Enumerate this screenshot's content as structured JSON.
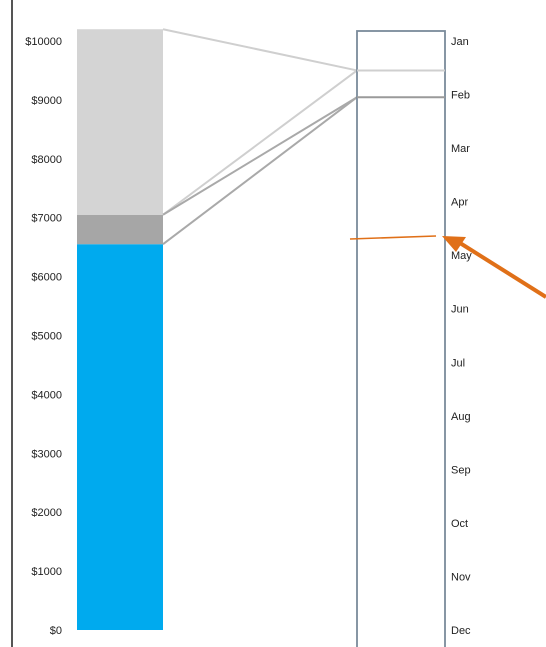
{
  "chart_data": {
    "type": "bar",
    "title": "",
    "xlabel": "",
    "ylabel": "",
    "ylim": [
      0,
      10500
    ],
    "y_ticks": [
      "$0",
      "$1000",
      "$2000",
      "$3000",
      "$4000",
      "$5000",
      "$6000",
      "$7000",
      "$8000",
      "$9000",
      "$10000"
    ],
    "y_tick_values": [
      0,
      1000,
      2000,
      3000,
      4000,
      5000,
      6000,
      7000,
      8000,
      9000,
      10000
    ],
    "stacked_bar": {
      "segments": [
        {
          "from": 0,
          "to": 6550,
          "color": "#00aaee"
        },
        {
          "from": 6550,
          "to": 7050,
          "color": "#a6a6a6"
        },
        {
          "from": 7050,
          "to": 10200,
          "color": "#d4d4d4"
        }
      ]
    },
    "months": [
      "Jan",
      "Feb",
      "Mar",
      "Apr",
      "May",
      "Jun",
      "Jul",
      "Aug",
      "Sep",
      "Oct",
      "Nov",
      "Dec"
    ],
    "zoom_lines": [
      {
        "month_pos": 0.55,
        "color": "#cfcfcf"
      },
      {
        "month_pos": 1.05,
        "color": "#9a9a9a"
      }
    ],
    "annotation_arrow": {
      "color": "#e07018"
    },
    "colors": {
      "axis": "#555555",
      "month_box": "#7a8a9a"
    }
  }
}
